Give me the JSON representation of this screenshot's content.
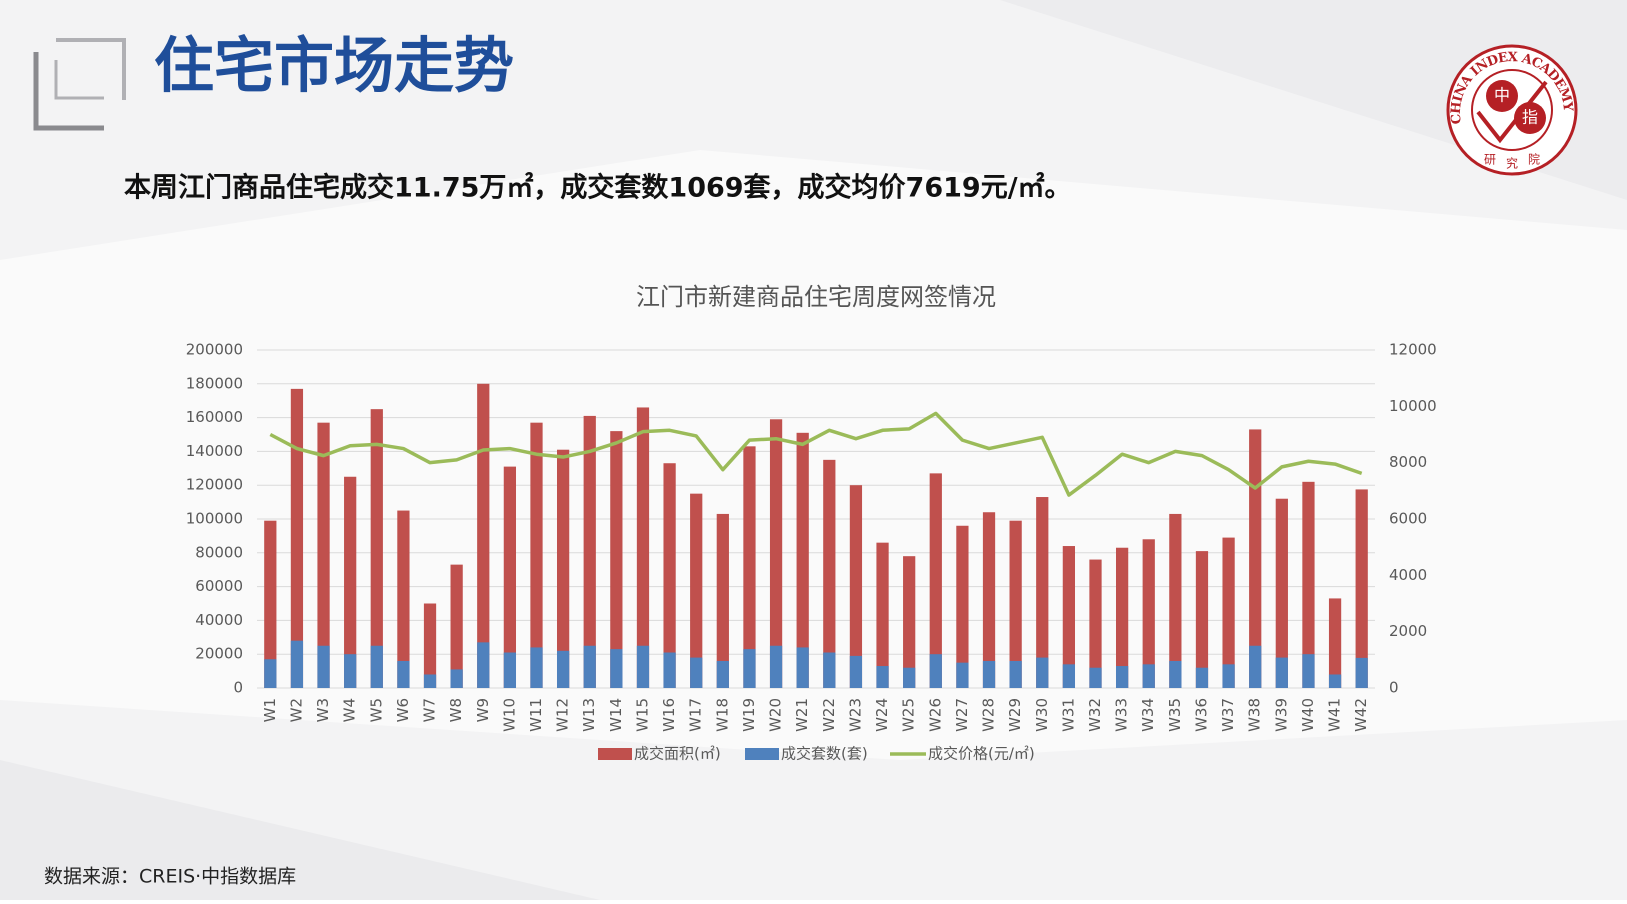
{
  "header": {
    "title": "住宅市场走势",
    "summary": "本周江门商品住宅成交11.75万㎡，成交套数1069套，成交均价7619元/㎡。",
    "logo": {
      "ring": "CHINA INDEX ACADEMY",
      "c1": "中",
      "c2": "指",
      "c3": "研",
      "c4": "究",
      "c5": "院"
    }
  },
  "footer": {
    "source": "数据来源：CREIS·中指数据库"
  },
  "chart_data": {
    "type": "bar-line",
    "title": "江门市新建商品住宅周度网签情况",
    "categories": [
      "W1",
      "W2",
      "W3",
      "W4",
      "W5",
      "W6",
      "W7",
      "W8",
      "W9",
      "W10",
      "W11",
      "W12",
      "W13",
      "W14",
      "W15",
      "W16",
      "W17",
      "W18",
      "W19",
      "W20",
      "W21",
      "W22",
      "W23",
      "W24",
      "W25",
      "W26",
      "W27",
      "W28",
      "W29",
      "W30",
      "W31",
      "W32",
      "W33",
      "W34",
      "W35",
      "W36",
      "W37",
      "W38",
      "W39",
      "W40",
      "W41",
      "W42"
    ],
    "series": [
      {
        "name": "成交面积(㎡)",
        "type": "bar",
        "color": "#c0504d",
        "values": [
          99000,
          177000,
          157000,
          125000,
          165000,
          105000,
          50000,
          73000,
          180000,
          131000,
          157000,
          141000,
          161000,
          152000,
          166000,
          133000,
          115000,
          103000,
          143000,
          159000,
          151000,
          135000,
          120000,
          86000,
          78000,
          127000,
          96000,
          104000,
          99000,
          113000,
          84000,
          76000,
          83000,
          88000,
          103000,
          81000,
          89000,
          153000,
          112000,
          122000,
          53000,
          117500
        ]
      },
      {
        "name": "成交套数(套)",
        "type": "bar",
        "axis": "y2",
        "color": "#4f81bd",
        "values": [
          1020,
          1680,
          1500,
          1200,
          1500,
          960,
          480,
          660,
          1620,
          1260,
          1440,
          1320,
          1500,
          1380,
          1500,
          1260,
          1080,
          960,
          1380,
          1500,
          1440,
          1260,
          1140,
          780,
          720,
          1200,
          900,
          960,
          960,
          1080,
          840,
          720,
          780,
          840,
          960,
          720,
          840,
          1500,
          1080,
          1200,
          480,
          1069
        ]
      },
      {
        "name": "成交价格(元/㎡)",
        "type": "line",
        "axis": "y2",
        "color": "#9bbb59",
        "values": [
          9000,
          8500,
          8250,
          8600,
          8650,
          8500,
          8000,
          8100,
          8450,
          8500,
          8300,
          8200,
          8400,
          8700,
          9100,
          9150,
          8950,
          7750,
          8800,
          8850,
          8650,
          9150,
          8850,
          9150,
          9200,
          9750,
          8800,
          8500,
          8700,
          8900,
          6850,
          7550,
          8300,
          8000,
          8400,
          8250,
          7750,
          7100,
          7850,
          8050,
          7950,
          7619
        ]
      }
    ],
    "ylim": [
      0,
      200000
    ],
    "yticks": [
      0,
      20000,
      40000,
      60000,
      80000,
      100000,
      120000,
      140000,
      160000,
      180000,
      200000
    ],
    "y2lim": [
      0,
      12000
    ],
    "y2ticks": [
      0,
      2000,
      4000,
      6000,
      8000,
      10000,
      12000
    ],
    "grid": true,
    "legend": "bottom"
  }
}
